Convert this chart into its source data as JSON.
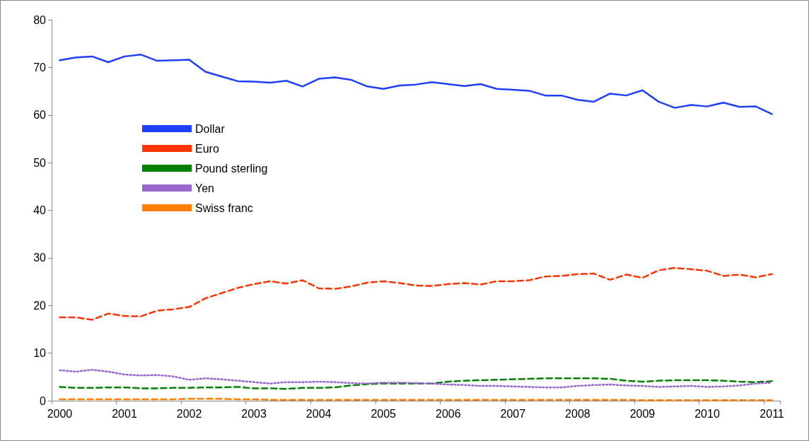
{
  "chart_data": {
    "type": "line",
    "categories": [
      "2000",
      null,
      null,
      null,
      "2001",
      null,
      null,
      null,
      "2002",
      null,
      null,
      null,
      "2003",
      null,
      null,
      null,
      "2004",
      null,
      null,
      null,
      "2005",
      null,
      null,
      null,
      "2006",
      null,
      null,
      null,
      "2007",
      null,
      null,
      null,
      "2008",
      null,
      null,
      null,
      "2009",
      null,
      null,
      null,
      "2010",
      null,
      null,
      null,
      "2011"
    ],
    "series": [
      {
        "name": "Dollar",
        "color": "#1f3fff",
        "line_style": "solid",
        "values": [
          71.5,
          72.1,
          72.3,
          71.1,
          72.3,
          72.7,
          71.4,
          71.5,
          71.6,
          69.1,
          68.1,
          67.1,
          67.0,
          66.8,
          67.2,
          66.0,
          67.6,
          67.9,
          67.4,
          66.0,
          65.5,
          66.2,
          66.4,
          66.9,
          66.5,
          66.1,
          66.5,
          65.5,
          65.3,
          65.1,
          64.1,
          64.1,
          63.2,
          62.8,
          64.5,
          64.1,
          65.2,
          62.8,
          61.5,
          62.1,
          61.8,
          62.6,
          61.7,
          61.8,
          60.2
        ]
      },
      {
        "name": "Euro",
        "color": "#ff3300",
        "line_style": "dashed",
        "values": [
          17.5,
          17.5,
          17.0,
          18.3,
          17.8,
          17.7,
          18.9,
          19.2,
          19.7,
          21.5,
          22.6,
          23.7,
          24.5,
          25.1,
          24.6,
          25.3,
          23.6,
          23.5,
          24.0,
          24.8,
          25.1,
          24.7,
          24.2,
          24.1,
          24.5,
          24.7,
          24.4,
          25.1,
          25.1,
          25.3,
          26.1,
          26.2,
          26.6,
          26.7,
          25.4,
          26.5,
          25.8,
          27.4,
          27.9,
          27.6,
          27.3,
          26.2,
          26.5,
          25.9,
          26.6
        ]
      },
      {
        "name": "Pound sterling",
        "color": "#008000",
        "line_style": "dashed",
        "values": [
          2.9,
          2.7,
          2.7,
          2.8,
          2.8,
          2.6,
          2.6,
          2.7,
          2.7,
          2.8,
          2.8,
          2.9,
          2.6,
          2.6,
          2.5,
          2.7,
          2.7,
          2.8,
          3.2,
          3.5,
          3.6,
          3.6,
          3.6,
          3.6,
          4.0,
          4.2,
          4.3,
          4.4,
          4.5,
          4.6,
          4.7,
          4.7,
          4.7,
          4.7,
          4.6,
          4.2,
          4.0,
          4.2,
          4.3,
          4.3,
          4.3,
          4.2,
          4.0,
          3.9,
          4.1
        ]
      },
      {
        "name": "Yen",
        "color": "#9966cc",
        "line_style": "dotted",
        "values": [
          6.4,
          6.1,
          6.5,
          6.1,
          5.5,
          5.3,
          5.4,
          5.1,
          4.4,
          4.7,
          4.5,
          4.2,
          3.9,
          3.6,
          3.9,
          3.9,
          4.0,
          3.9,
          3.7,
          3.6,
          3.8,
          3.8,
          3.7,
          3.6,
          3.4,
          3.3,
          3.1,
          3.1,
          3.0,
          2.9,
          2.8,
          2.8,
          3.1,
          3.3,
          3.4,
          3.2,
          3.1,
          2.9,
          3.0,
          3.1,
          2.9,
          3.0,
          3.2,
          3.6,
          3.8
        ]
      },
      {
        "name": "Swiss franc",
        "color": "#ff8000",
        "line_style": "dashed",
        "values": [
          0.3,
          0.3,
          0.3,
          0.3,
          0.3,
          0.3,
          0.3,
          0.3,
          0.4,
          0.4,
          0.4,
          0.3,
          0.3,
          0.2,
          0.2,
          0.2,
          0.2,
          0.2,
          0.2,
          0.2,
          0.2,
          0.2,
          0.2,
          0.2,
          0.2,
          0.2,
          0.2,
          0.2,
          0.2,
          0.2,
          0.2,
          0.2,
          0.2,
          0.2,
          0.2,
          0.2,
          0.1,
          0.1,
          0.1,
          0.1,
          0.1,
          0.1,
          0.1,
          0.1,
          0.1
        ]
      }
    ],
    "ylim": [
      0,
      80
    ],
    "yticks": [
      0,
      10,
      20,
      30,
      40,
      50,
      60,
      70,
      80
    ],
    "grid": false,
    "legend": "left",
    "marker": "none"
  }
}
